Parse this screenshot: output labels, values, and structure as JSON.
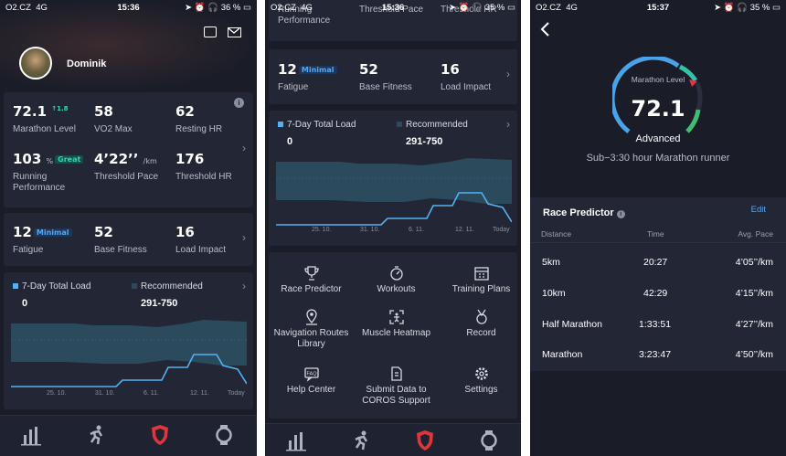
{
  "status": {
    "carrier": "O2.CZ",
    "network": "4G",
    "p1_time": "15:36",
    "p1_battery": "36 %",
    "p2_time": "15:36",
    "p2_battery": "35 %",
    "p3_time": "15:37",
    "p3_battery": "35 %"
  },
  "profile": {
    "name": "Dominik"
  },
  "metrics": {
    "marathon_level": "72.1",
    "marathon_level_delta": "1.8",
    "marathon_level_label": "Marathon Level",
    "vo2max": "58",
    "vo2max_label": "VO2 Max",
    "resting_hr": "62",
    "resting_hr_label": "Resting HR",
    "running_perf": "103",
    "running_perf_unit": "%",
    "running_perf_tag": "Great",
    "running_perf_label": "Running Performance",
    "threshold_pace": "4’22’’",
    "threshold_pace_unit": "/km",
    "threshold_pace_label": "Threshold Pace",
    "threshold_hr": "176",
    "threshold_hr_label": "Threshold HR",
    "fatigue": "12",
    "fatigue_tag": "Minimal",
    "fatigue_label": "Fatigue",
    "base_fitness": "52",
    "base_fitness_label": "Base Fitness",
    "load_impact": "16",
    "load_impact_label": "Load Impact"
  },
  "load": {
    "total_label": "7-Day Total Load",
    "total_value": "0",
    "recommended_label": "Recommended",
    "recommended_value": "291-750",
    "ticks": [
      "25. 10.",
      "31. 10.",
      "6. 11.",
      "12. 11.",
      "Today"
    ]
  },
  "chart_data": {
    "type": "area",
    "x": [
      "25. 10.",
      "31. 10.",
      "6. 11.",
      "12. 11.",
      "Today"
    ],
    "series": [
      {
        "name": "Recommended",
        "type": "area"
      },
      {
        "name": "7-Day Total Load",
        "type": "line"
      }
    ]
  },
  "menu": [
    {
      "label": "Race Predictor",
      "icon": "trophy-icon"
    },
    {
      "label": "Workouts",
      "icon": "stopwatch-icon"
    },
    {
      "label": "Training Plans",
      "icon": "calendar-icon"
    },
    {
      "label": "Navigation Routes Library",
      "icon": "map-pin-icon"
    },
    {
      "label": "Muscle Heatmap",
      "icon": "body-scan-icon"
    },
    {
      "label": "Record",
      "icon": "medal-icon"
    },
    {
      "label": "Help Center",
      "icon": "faq-icon"
    },
    {
      "label": "Submit Data to COROS Support",
      "icon": "upload-doc-icon"
    },
    {
      "label": "Settings",
      "icon": "gear-icon"
    }
  ],
  "gauge": {
    "title": "Marathon Level",
    "value": "72.1",
    "level": "Advanced",
    "description": "Sub−3:30 hour Marathon runner"
  },
  "race": {
    "title": "Race Predictor",
    "edit": "Edit",
    "headers": {
      "distance": "Distance",
      "time": "Time",
      "pace": "Avg. Pace"
    },
    "rows": [
      {
        "distance": "5km",
        "time": "20:27",
        "pace": "4’05’’/km"
      },
      {
        "distance": "10km",
        "time": "42:29",
        "pace": "4’15’’/km"
      },
      {
        "distance": "Half Marathon",
        "time": "1:33:51",
        "pace": "4’27’’/km"
      },
      {
        "distance": "Marathon",
        "time": "3:23:47",
        "pace": "4’50’’/km"
      }
    ]
  }
}
